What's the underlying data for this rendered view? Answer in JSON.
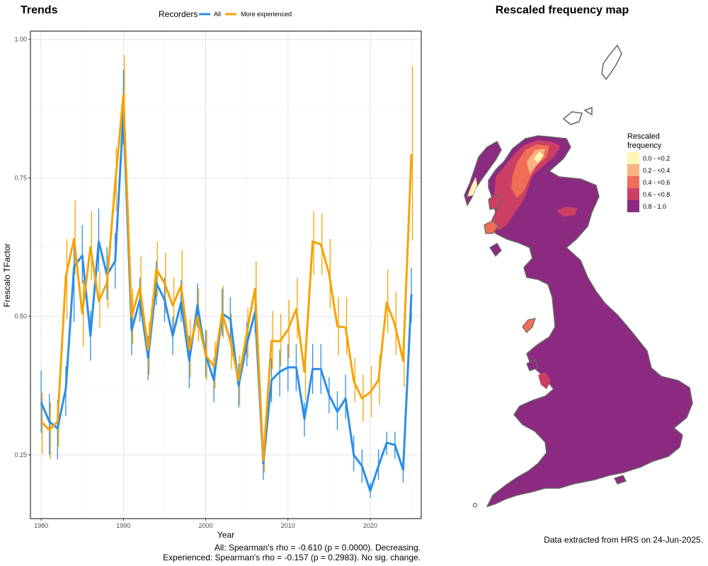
{
  "left_panel": {
    "title": "Trends",
    "legend_title": "Recorders",
    "stat_lines": [
      "All: Spearman's rho = -0.610 (p = 0.0000). Decreasing.",
      "Experienced: Spearman's rho = -0.157 (p = 0.2983). No sig. change."
    ]
  },
  "chart_data": {
    "type": "line",
    "xlabel": "Year",
    "ylabel": "Frescalo TFactor",
    "xlim": [
      1978.7,
      2026.2
    ],
    "ylim": [
      0.135,
      1.015
    ],
    "xticks": [
      1980,
      1990,
      2000,
      2010,
      2020
    ],
    "yticks": [
      0.25,
      0.5,
      0.75,
      1.0
    ],
    "ytick_labels": [
      "0.25",
      "0.50",
      "0.75",
      "1.00"
    ],
    "grid": true,
    "legend_position": "top",
    "series": [
      {
        "name": "All",
        "color": "#2a8ee8",
        "x": [
          1980,
          1981,
          1982,
          1983,
          1984,
          1985,
          1986,
          1987,
          1988,
          1989,
          1990,
          1991,
          1992,
          1993,
          1994,
          1995,
          1996,
          1997,
          1998,
          1999,
          2000,
          2001,
          2002,
          2003,
          2004,
          2005,
          2006,
          2007,
          2008,
          2009,
          2010,
          2011,
          2012,
          2013,
          2014,
          2015,
          2016,
          2017,
          2018,
          2019,
          2020,
          2021,
          2022,
          2023,
          2024,
          2025
        ],
        "y": [
          0.345,
          0.31,
          0.298,
          0.37,
          0.59,
          0.61,
          0.465,
          0.635,
          0.575,
          0.6,
          0.87,
          0.475,
          0.53,
          0.425,
          0.56,
          0.53,
          0.465,
          0.525,
          0.42,
          0.52,
          0.43,
          0.385,
          0.505,
          0.495,
          0.375,
          0.45,
          0.508,
          0.235,
          0.385,
          0.4,
          0.408,
          0.408,
          0.315,
          0.405,
          0.405,
          0.358,
          0.328,
          0.352,
          0.25,
          0.23,
          0.185,
          0.23,
          0.272,
          0.268,
          0.223,
          0.54
        ],
        "err_low": [
          0.29,
          0.25,
          0.242,
          0.32,
          0.49,
          0.56,
          0.42,
          0.58,
          0.53,
          0.55,
          0.81,
          0.43,
          0.49,
          0.385,
          0.52,
          0.49,
          0.43,
          0.49,
          0.37,
          0.48,
          0.39,
          0.345,
          0.465,
          0.455,
          0.335,
          0.41,
          0.47,
          0.205,
          0.345,
          0.355,
          0.365,
          0.365,
          0.283,
          0.36,
          0.36,
          0.325,
          0.295,
          0.315,
          0.22,
          0.2,
          0.172,
          0.205,
          0.25,
          0.243,
          0.2,
          0.49
        ],
        "err_high": [
          0.402,
          0.36,
          0.35,
          0.41,
          0.64,
          0.665,
          0.51,
          0.695,
          0.625,
          0.65,
          0.945,
          0.52,
          0.57,
          0.465,
          0.6,
          0.57,
          0.5,
          0.565,
          0.465,
          0.56,
          0.475,
          0.425,
          0.55,
          0.535,
          0.415,
          0.49,
          0.545,
          0.265,
          0.425,
          0.44,
          0.45,
          0.45,
          0.345,
          0.45,
          0.45,
          0.39,
          0.365,
          0.395,
          0.285,
          0.26,
          0.2,
          0.26,
          0.292,
          0.292,
          0.245,
          0.588
        ]
      },
      {
        "name": "More experienced",
        "color": "#f5a300",
        "x": [
          1980,
          1981,
          1982,
          1983,
          1984,
          1985,
          1986,
          1987,
          1988,
          1989,
          1990,
          1991,
          1992,
          1993,
          1994,
          1995,
          1996,
          1997,
          1998,
          1999,
          2000,
          2001,
          2002,
          2003,
          2004,
          2005,
          2006,
          2007,
          2008,
          2009,
          2010,
          2011,
          2012,
          2013,
          2014,
          2015,
          2016,
          2017,
          2018,
          2019,
          2020,
          2021,
          2022,
          2023,
          2024,
          2025
        ],
        "y": [
          0.31,
          0.295,
          0.31,
          0.572,
          0.64,
          0.505,
          0.625,
          0.528,
          0.56,
          0.74,
          0.9,
          0.5,
          0.552,
          0.44,
          0.585,
          0.56,
          0.52,
          0.555,
          0.44,
          0.5,
          0.43,
          0.41,
          0.505,
          0.455,
          0.385,
          0.47,
          0.55,
          0.24,
          0.456,
          0.455,
          0.476,
          0.513,
          0.4,
          0.635,
          0.63,
          0.577,
          0.482,
          0.48,
          0.383,
          0.352,
          0.363,
          0.385,
          0.525,
          0.485,
          0.42,
          0.793
        ],
        "err_low": [
          0.252,
          0.243,
          0.265,
          0.495,
          0.575,
          0.445,
          0.565,
          0.48,
          0.515,
          0.69,
          0.835,
          0.45,
          0.5,
          0.395,
          0.535,
          0.505,
          0.47,
          0.505,
          0.39,
          0.455,
          0.385,
          0.37,
          0.46,
          0.405,
          0.34,
          0.425,
          0.5,
          0.218,
          0.405,
          0.41,
          0.425,
          0.46,
          0.35,
          0.575,
          0.575,
          0.515,
          0.43,
          0.43,
          0.345,
          0.31,
          0.318,
          0.34,
          0.47,
          0.43,
          0.372,
          0.637
        ],
        "err_high": [
          0.362,
          0.345,
          0.355,
          0.64,
          0.71,
          0.565,
          0.69,
          0.58,
          0.61,
          0.805,
          0.972,
          0.55,
          0.608,
          0.49,
          0.635,
          0.615,
          0.57,
          0.62,
          0.495,
          0.55,
          0.475,
          0.455,
          0.555,
          0.505,
          0.43,
          0.515,
          0.6,
          0.265,
          0.51,
          0.505,
          0.53,
          0.57,
          0.45,
          0.69,
          0.685,
          0.64,
          0.535,
          0.535,
          0.425,
          0.395,
          0.41,
          0.43,
          0.585,
          0.545,
          0.468,
          0.952
        ]
      }
    ]
  },
  "right_panel": {
    "title": "Rescaled frequency map",
    "legend_title_line1": "Rescaled",
    "legend_title_line2": "frequency",
    "legend_items": [
      {
        "label": "0.0 - <0.2",
        "color": "#fdf5b4"
      },
      {
        "label": "0.2 - <0.4",
        "color": "#f9b383"
      },
      {
        "label": "0.4 - <0.6",
        "color": "#f06e57"
      },
      {
        "label": "0.6 - <0.8",
        "color": "#cc3f65"
      },
      {
        "label": "0.8 - 1.0",
        "color": "#8c2981"
      }
    ],
    "credit": "Data extracted from HRS on 24-Jun-2025."
  }
}
